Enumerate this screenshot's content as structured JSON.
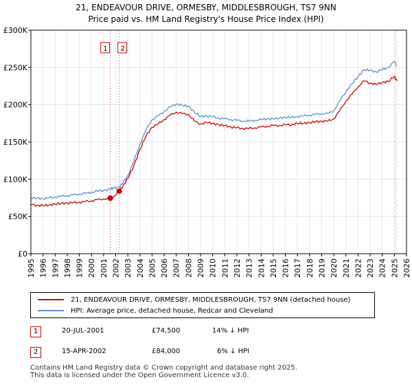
{
  "title": {
    "line1": "21, ENDEAVOUR DRIVE, ORMESBY, MIDDLESBROUGH, TS7 9NN",
    "line2": "Price paid vs. HM Land Registry's House Price Index (HPI)"
  },
  "colors": {
    "property": "#cc0000",
    "hpi": "#5b8fd1",
    "grid": "#e6e6e6",
    "marker_line": "#cc88cc"
  },
  "chart_data": {
    "type": "line",
    "title": "Price paid vs. HM Land Registry's House Price Index (HPI)",
    "xlabel": "",
    "ylabel": "",
    "xlim": [
      1995,
      2026
    ],
    "ylim": [
      0,
      300000
    ],
    "y_ticks": [
      {
        "value": 0,
        "label": "£0"
      },
      {
        "value": 50000,
        "label": "£50K"
      },
      {
        "value": 100000,
        "label": "£100K"
      },
      {
        "value": 150000,
        "label": "£150K"
      },
      {
        "value": 200000,
        "label": "£200K"
      },
      {
        "value": 250000,
        "label": "£250K"
      },
      {
        "value": 300000,
        "label": "£300K"
      }
    ],
    "x_ticks": [
      "1995",
      "1996",
      "1997",
      "1998",
      "1999",
      "2000",
      "2001",
      "2002",
      "2003",
      "2004",
      "2005",
      "2006",
      "2007",
      "2008",
      "2009",
      "2010",
      "2011",
      "2012",
      "2013",
      "2014",
      "2015",
      "2016",
      "2017",
      "2018",
      "2019",
      "2020",
      "2021",
      "2022",
      "2023",
      "2024",
      "2025",
      "2026"
    ],
    "series": [
      {
        "name": "21, ENDEAVOUR DRIVE, ORMESBY, MIDDLESBROUGH, TS7 9NN (detached house)",
        "color": "#cc0000",
        "x": [
          1995.0,
          1995.5,
          1996.0,
          1996.5,
          1997.0,
          1997.5,
          1998.0,
          1998.5,
          1999.0,
          1999.5,
          2000.0,
          2000.5,
          2001.0,
          2001.55,
          2001.8,
          2002.29,
          2002.6,
          2003.0,
          2003.5,
          2004.0,
          2004.5,
          2005.0,
          2005.5,
          2006.0,
          2006.5,
          2007.0,
          2007.5,
          2008.0,
          2008.5,
          2009.0,
          2009.5,
          2010.0,
          2010.5,
          2011.0,
          2011.5,
          2012.0,
          2012.5,
          2013.0,
          2013.5,
          2014.0,
          2014.5,
          2015.0,
          2015.5,
          2016.0,
          2016.5,
          2017.0,
          2017.5,
          2018.0,
          2018.5,
          2019.0,
          2019.5,
          2020.0,
          2020.5,
          2021.0,
          2021.5,
          2022.0,
          2022.5,
          2023.0,
          2023.5,
          2024.0,
          2024.5,
          2025.0,
          2025.2
        ],
        "y": [
          66000,
          65000,
          64500,
          65500,
          66500,
          67500,
          68000,
          68500,
          69000,
          70000,
          71000,
          72500,
          73500,
          74500,
          76000,
          84000,
          91000,
          101000,
          118000,
          140000,
          158000,
          170000,
          174000,
          180000,
          186000,
          190000,
          188000,
          187000,
          178000,
          174000,
          176000,
          175000,
          173000,
          172000,
          170000,
          169000,
          168000,
          168000,
          169000,
          170000,
          171000,
          172000,
          172000,
          173000,
          173000,
          175000,
          175000,
          176000,
          177000,
          178000,
          178000,
          181000,
          192000,
          205000,
          214000,
          224000,
          232000,
          229000,
          227000,
          230000,
          231000,
          238000,
          232000
        ]
      },
      {
        "name": "HPI: Average price, detached house, Redcar and Cleveland",
        "color": "#5b8fd1",
        "x": [
          1995.0,
          1995.5,
          1996.0,
          1996.5,
          1997.0,
          1997.5,
          1998.0,
          1998.5,
          1999.0,
          1999.5,
          2000.0,
          2000.5,
          2001.0,
          2001.55,
          2001.8,
          2002.29,
          2002.6,
          2003.0,
          2003.5,
          2004.0,
          2004.5,
          2005.0,
          2005.5,
          2006.0,
          2006.5,
          2007.0,
          2007.5,
          2008.0,
          2008.5,
          2009.0,
          2009.5,
          2010.0,
          2010.5,
          2011.0,
          2011.5,
          2012.0,
          2012.5,
          2013.0,
          2013.5,
          2014.0,
          2014.5,
          2015.0,
          2015.5,
          2016.0,
          2016.5,
          2017.0,
          2017.5,
          2018.0,
          2018.5,
          2019.0,
          2019.5,
          2020.0,
          2020.5,
          2021.0,
          2021.5,
          2022.0,
          2022.5,
          2023.0,
          2023.5,
          2024.0,
          2024.5,
          2025.0,
          2025.2
        ],
        "y": [
          75000,
          74500,
          74000,
          75000,
          76000,
          77000,
          78000,
          79000,
          80000,
          81000,
          82500,
          84000,
          85000,
          86500,
          88000,
          89500,
          95000,
          105000,
          124000,
          147000,
          166000,
          180000,
          185000,
          191000,
          197000,
          201000,
          199000,
          198000,
          190000,
          184000,
          185000,
          184000,
          182000,
          181000,
          180000,
          179000,
          178000,
          178000,
          179000,
          180000,
          181000,
          181000,
          182000,
          183000,
          183000,
          184000,
          185000,
          186000,
          187000,
          188000,
          188000,
          192000,
          205000,
          218000,
          228000,
          238000,
          247000,
          246000,
          244000,
          247000,
          250000,
          258000,
          252000
        ]
      }
    ],
    "sales": [
      {
        "label": "1",
        "x": 2001.55,
        "y": 74500
      },
      {
        "label": "2",
        "x": 2002.29,
        "y": 84000
      }
    ]
  },
  "legend": {
    "property_label": "21, ENDEAVOUR DRIVE, ORMESBY, MIDDLESBROUGH, TS7 9NN (detached house)",
    "hpi_label": "HPI: Average price, detached house, Redcar and Cleveland"
  },
  "transactions": [
    {
      "num": "1",
      "date": "20-JUL-2001",
      "price": "£74,500",
      "hpi": "14% ↓ HPI"
    },
    {
      "num": "2",
      "date": "15-APR-2002",
      "price": "£84,000",
      "hpi": "6% ↓ HPI"
    }
  ],
  "footer": {
    "line1": "Contains HM Land Registry data © Crown copyright and database right 2025.",
    "line2": "This data is licensed under the Open Government Licence v3.0."
  }
}
